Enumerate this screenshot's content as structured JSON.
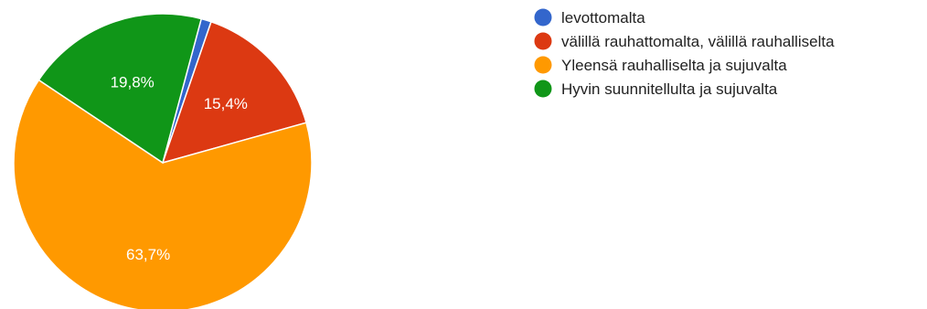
{
  "chart_data": {
    "type": "pie",
    "start_angle_deg": 75,
    "direction": "clockwise",
    "slices": [
      {
        "label": "levottomalta",
        "value": 1.1,
        "display": "",
        "color": "#3366cc"
      },
      {
        "label": "välillä rauhattomalta, välillä rauhalliselta",
        "value": 15.4,
        "display": "15,4%",
        "color": "#dc3912"
      },
      {
        "label": "Yleensä rauhalliselta ja sujuvalta",
        "value": 63.7,
        "display": "63,7%",
        "color": "#ff9900"
      },
      {
        "label": "Hyvin suunnitellulta ja sujuvalta",
        "value": 19.8,
        "display": "19,8%",
        "color": "#109618"
      }
    ],
    "legend_position": "right"
  }
}
